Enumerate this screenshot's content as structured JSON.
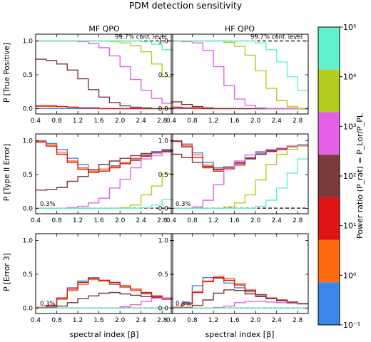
{
  "figure": {
    "title": "PDM detection sensitivity",
    "column_titles": [
      "MF QPO",
      "HF QPO"
    ],
    "row_ylabels": [
      "P [True Positive]",
      "P [Type II Error]",
      "P [Error 3]"
    ],
    "xlabel": "spectral index [β]",
    "conf_label": "99.7% conf. level",
    "level_label": "0.3%",
    "colorbar": {
      "label": "Power ratio (P_rat) = P_Lor/P_PL",
      "tick_labels": [
        "10⁻¹",
        "10⁰",
        "10¹",
        "10²",
        "10³",
        "10⁴",
        "10⁵"
      ],
      "colors": [
        "#3a86ea",
        "#ff6a10",
        "#e01414",
        "#7a3a3a",
        "#e660e6",
        "#b5cc1e",
        "#5ff2cc"
      ]
    }
  },
  "chart_data": [
    {
      "type": "line",
      "panel": "MF QPO / P [True Positive]",
      "ylabel": "P [True Positive]",
      "title": "MF QPO",
      "xlim": [
        0.4,
        3.0
      ],
      "ylim": [
        -0.08,
        1.1
      ],
      "x_ticks": [
        0.4,
        0.8,
        1.2,
        1.6,
        2.0,
        2.4,
        2.8
      ],
      "y_ticks": [
        0.0,
        0.5,
        1.0
      ],
      "bin_edges": [
        0.4,
        0.6,
        0.8,
        1.0,
        1.2,
        1.4,
        1.6,
        1.8,
        2.0,
        2.2,
        2.4,
        2.6,
        2.8,
        3.0
      ],
      "reference_line": 1.0,
      "reference_label": "99.7% conf. level",
      "series": [
        {
          "values": [
            0.0,
            0.0,
            0.0,
            0.0,
            0.0,
            0.0,
            0.0,
            0.0,
            0.0,
            0.0,
            0.0,
            0.0,
            0.0
          ]
        },
        {
          "values": [
            0.03,
            0.03,
            0.03,
            0.02,
            0.01,
            0.01,
            0.0,
            0.0,
            0.0,
            0.0,
            0.0,
            0.0,
            0.0
          ]
        },
        {
          "values": [
            0.04,
            0.04,
            0.03,
            0.02,
            0.01,
            0.01,
            0.0,
            0.0,
            0.0,
            0.0,
            0.0,
            0.0,
            0.0
          ]
        },
        {
          "values": [
            0.73,
            0.71,
            0.66,
            0.57,
            0.44,
            0.28,
            0.17,
            0.09,
            0.04,
            0.02,
            0.01,
            0.0,
            0.0
          ]
        },
        {
          "values": [
            1.0,
            1.0,
            1.0,
            1.0,
            0.99,
            0.96,
            0.9,
            0.78,
            0.62,
            0.43,
            0.27,
            0.15,
            0.08
          ]
        },
        {
          "values": [
            1.0,
            1.0,
            1.0,
            1.0,
            1.0,
            1.0,
            1.0,
            0.99,
            0.97,
            0.93,
            0.84,
            0.66,
            0.47
          ]
        },
        {
          "values": [
            1.0,
            1.0,
            1.0,
            1.0,
            1.0,
            1.0,
            1.0,
            1.0,
            1.0,
            1.0,
            0.99,
            0.95,
            0.87
          ]
        }
      ]
    },
    {
      "type": "line",
      "panel": "HF QPO / P [True Positive]",
      "ylabel": "",
      "title": "HF QPO",
      "xlim": [
        0.4,
        3.0
      ],
      "ylim": [
        -0.08,
        1.1
      ],
      "x_ticks": [
        0.4,
        0.8,
        1.2,
        1.6,
        2.0,
        2.4,
        2.8
      ],
      "y_ticks": [
        0.0,
        0.5,
        1.0
      ],
      "bin_edges": [
        0.4,
        0.6,
        0.8,
        1.0,
        1.2,
        1.4,
        1.6,
        1.8,
        2.0,
        2.2,
        2.4,
        2.6,
        2.8,
        3.0
      ],
      "reference_line": 1.0,
      "reference_label": "99.7% conf. level",
      "series": [
        {
          "values": [
            0.0,
            0.0,
            0.0,
            0.0,
            0.0,
            0.0,
            0.0,
            0.0,
            0.0,
            0.0,
            0.0,
            0.0,
            0.0
          ]
        },
        {
          "values": [
            0.01,
            0.01,
            0.0,
            0.0,
            0.0,
            0.0,
            0.0,
            0.0,
            0.0,
            0.0,
            0.0,
            0.0,
            0.0
          ]
        },
        {
          "values": [
            0.02,
            0.01,
            0.01,
            0.0,
            0.0,
            0.0,
            0.0,
            0.0,
            0.0,
            0.0,
            0.0,
            0.0,
            0.0
          ]
        },
        {
          "values": [
            0.1,
            0.06,
            0.03,
            0.01,
            0.0,
            0.0,
            0.0,
            0.0,
            0.0,
            0.0,
            0.0,
            0.0,
            0.0
          ]
        },
        {
          "values": [
            1.0,
            0.99,
            0.97,
            0.86,
            0.62,
            0.34,
            0.14,
            0.05,
            0.01,
            0.0,
            0.0,
            0.0,
            0.0
          ]
        },
        {
          "values": [
            1.0,
            1.0,
            1.0,
            1.0,
            1.0,
            0.98,
            0.92,
            0.79,
            0.56,
            0.3,
            0.12,
            0.03,
            0.0
          ]
        },
        {
          "values": [
            1.0,
            1.0,
            1.0,
            1.0,
            1.0,
            1.0,
            1.0,
            1.0,
            0.97,
            0.87,
            0.69,
            0.47,
            0.27
          ]
        }
      ]
    },
    {
      "type": "line",
      "panel": "MF QPO / P [Type II Error]",
      "ylabel": "P [Type II Error]",
      "xlim": [
        0.4,
        3.0
      ],
      "ylim": [
        -0.08,
        1.1
      ],
      "x_ticks": [
        0.4,
        0.8,
        1.2,
        1.6,
        2.0,
        2.4,
        2.8
      ],
      "y_ticks": [
        0.0,
        0.5,
        1.0
      ],
      "bin_edges": [
        0.4,
        0.6,
        0.8,
        1.0,
        1.2,
        1.4,
        1.6,
        1.8,
        2.0,
        2.2,
        2.4,
        2.6,
        2.8,
        3.0
      ],
      "reference_line": 0.003,
      "reference_label": "0.3%",
      "series": [
        {
          "values": [
            1.0,
            0.96,
            0.87,
            0.74,
            0.65,
            0.57,
            0.58,
            0.63,
            0.68,
            0.74,
            0.79,
            0.84,
            0.87
          ]
        },
        {
          "values": [
            0.99,
            0.94,
            0.83,
            0.7,
            0.6,
            0.55,
            0.58,
            0.62,
            0.68,
            0.73,
            0.78,
            0.82,
            0.86
          ]
        },
        {
          "values": [
            0.98,
            0.92,
            0.8,
            0.68,
            0.58,
            0.53,
            0.55,
            0.6,
            0.66,
            0.71,
            0.77,
            0.82,
            0.85
          ]
        },
        {
          "values": [
            0.27,
            0.28,
            0.31,
            0.4,
            0.47,
            0.57,
            0.65,
            0.7,
            0.74,
            0.78,
            0.81,
            0.82,
            0.84
          ]
        },
        {
          "values": [
            0.0,
            0.0,
            0.0,
            0.01,
            0.03,
            0.08,
            0.15,
            0.3,
            0.43,
            0.6,
            0.73,
            0.78,
            0.83
          ]
        },
        {
          "values": [
            0.0,
            0.0,
            0.0,
            0.0,
            0.0,
            0.0,
            0.0,
            0.0,
            0.01,
            0.05,
            0.2,
            0.33,
            0.51
          ]
        },
        {
          "values": [
            0.0,
            0.0,
            0.0,
            0.0,
            0.0,
            0.0,
            0.0,
            0.0,
            0.0,
            0.0,
            0.01,
            0.05,
            0.13
          ]
        }
      ]
    },
    {
      "type": "line",
      "panel": "HF QPO / P [Type II Error]",
      "ylabel": "",
      "xlim": [
        0.4,
        3.0
      ],
      "ylim": [
        -0.08,
        1.1
      ],
      "x_ticks": [
        0.4,
        0.8,
        1.2,
        1.6,
        2.0,
        2.4,
        2.8
      ],
      "y_ticks": [
        0.0,
        0.5,
        1.0
      ],
      "bin_edges": [
        0.4,
        0.6,
        0.8,
        1.0,
        1.2,
        1.4,
        1.6,
        1.8,
        2.0,
        2.2,
        2.4,
        2.6,
        2.8,
        3.0
      ],
      "reference_line": 0.003,
      "reference_label": "0.3%",
      "series": [
        {
          "values": [
            1.0,
            0.95,
            0.82,
            0.68,
            0.6,
            0.61,
            0.68,
            0.75,
            0.82,
            0.86,
            0.89,
            0.92,
            0.94
          ]
        },
        {
          "values": [
            0.99,
            0.93,
            0.79,
            0.64,
            0.57,
            0.59,
            0.66,
            0.74,
            0.8,
            0.85,
            0.88,
            0.92,
            0.93
          ]
        },
        {
          "values": [
            0.99,
            0.91,
            0.75,
            0.62,
            0.55,
            0.58,
            0.64,
            0.73,
            0.8,
            0.84,
            0.87,
            0.91,
            0.93
          ]
        },
        {
          "values": [
            0.8,
            0.75,
            0.68,
            0.6,
            0.58,
            0.61,
            0.67,
            0.74,
            0.8,
            0.85,
            0.88,
            0.91,
            0.93
          ]
        },
        {
          "values": [
            0.0,
            0.0,
            0.02,
            0.12,
            0.35,
            0.58,
            0.7,
            0.79,
            0.84,
            0.87,
            0.89,
            0.91,
            0.93
          ]
        },
        {
          "values": [
            0.0,
            0.0,
            0.0,
            0.0,
            0.0,
            0.02,
            0.08,
            0.2,
            0.42,
            0.65,
            0.8,
            0.87,
            0.92
          ]
        },
        {
          "values": [
            0.0,
            0.0,
            0.0,
            0.0,
            0.0,
            0.0,
            0.0,
            0.0,
            0.03,
            0.12,
            0.3,
            0.52,
            0.73
          ]
        }
      ]
    },
    {
      "type": "line",
      "panel": "MF QPO / P [Error 3]",
      "ylabel": "P [Error 3]",
      "xlim": [
        0.4,
        3.0
      ],
      "ylim": [
        -0.08,
        1.1
      ],
      "x_ticks": [
        0.4,
        0.8,
        1.2,
        1.6,
        2.0,
        2.4,
        2.8
      ],
      "y_ticks": [
        0.0,
        0.5,
        1.0
      ],
      "bin_edges": [
        0.4,
        0.6,
        0.8,
        1.0,
        1.2,
        1.4,
        1.6,
        1.8,
        2.0,
        2.2,
        2.4,
        2.6,
        2.8,
        3.0
      ],
      "reference_line": 0.003,
      "reference_label": "0.3%",
      "series": [
        {
          "values": [
            0.0,
            0.02,
            0.14,
            0.3,
            0.4,
            0.45,
            0.41,
            0.35,
            0.31,
            0.26,
            0.21,
            0.16,
            0.13
          ]
        },
        {
          "values": [
            0.01,
            0.04,
            0.13,
            0.26,
            0.35,
            0.42,
            0.4,
            0.36,
            0.31,
            0.26,
            0.22,
            0.17,
            0.13
          ]
        },
        {
          "values": [
            0.01,
            0.04,
            0.15,
            0.28,
            0.38,
            0.44,
            0.41,
            0.38,
            0.33,
            0.28,
            0.23,
            0.18,
            0.14
          ]
        },
        {
          "values": [
            0.0,
            0.01,
            0.03,
            0.08,
            0.14,
            0.18,
            0.22,
            0.23,
            0.21,
            0.19,
            0.17,
            0.16,
            0.15
          ]
        },
        {
          "values": [
            0.0,
            0.0,
            0.0,
            0.0,
            0.0,
            0.0,
            0.0,
            0.0,
            0.02,
            0.05,
            0.1,
            0.14,
            0.15
          ]
        },
        {
          "values": [
            0.0,
            0.0,
            0.0,
            0.0,
            0.0,
            0.0,
            0.0,
            0.0,
            0.0,
            0.0,
            0.0,
            0.0,
            0.0
          ]
        },
        {
          "values": [
            0.0,
            0.0,
            0.0,
            0.0,
            0.0,
            0.0,
            0.0,
            0.0,
            0.0,
            0.0,
            0.0,
            0.0,
            0.0
          ]
        }
      ]
    },
    {
      "type": "line",
      "panel": "HF QPO / P [Error 3]",
      "ylabel": "",
      "xlim": [
        0.4,
        3.0
      ],
      "ylim": [
        -0.08,
        1.1
      ],
      "x_ticks": [
        0.4,
        0.8,
        1.2,
        1.6,
        2.0,
        2.4,
        2.8
      ],
      "y_ticks": [
        0.0,
        0.5,
        1.0
      ],
      "bin_edges": [
        0.4,
        0.6,
        0.8,
        1.0,
        1.2,
        1.4,
        1.6,
        1.8,
        2.0,
        2.2,
        2.4,
        2.6,
        2.8,
        3.0
      ],
      "reference_line": 0.003,
      "reference_label": "0.3%",
      "series": [
        {
          "values": [
            0.01,
            0.08,
            0.33,
            0.45,
            0.44,
            0.37,
            0.3,
            0.24,
            0.18,
            0.14,
            0.11,
            0.08,
            0.06
          ]
        },
        {
          "values": [
            0.01,
            0.06,
            0.24,
            0.4,
            0.47,
            0.44,
            0.36,
            0.27,
            0.2,
            0.15,
            0.11,
            0.08,
            0.07
          ]
        },
        {
          "values": [
            0.01,
            0.06,
            0.23,
            0.39,
            0.45,
            0.41,
            0.34,
            0.26,
            0.2,
            0.15,
            0.12,
            0.09,
            0.07
          ]
        },
        {
          "values": [
            0.0,
            0.01,
            0.04,
            0.12,
            0.22,
            0.27,
            0.26,
            0.21,
            0.17,
            0.14,
            0.11,
            0.09,
            0.07
          ]
        },
        {
          "values": [
            0.0,
            0.0,
            0.0,
            0.0,
            0.01,
            0.03,
            0.08,
            0.1,
            0.1,
            0.09,
            0.08,
            0.07,
            0.06
          ]
        },
        {
          "values": [
            0.0,
            0.0,
            0.0,
            0.0,
            0.0,
            0.0,
            0.0,
            0.0,
            0.0,
            0.0,
            0.0,
            0.0,
            0.0
          ]
        },
        {
          "values": [
            0.0,
            0.0,
            0.0,
            0.0,
            0.0,
            0.0,
            0.0,
            0.0,
            0.0,
            0.0,
            0.0,
            0.0,
            0.0
          ]
        }
      ]
    }
  ]
}
